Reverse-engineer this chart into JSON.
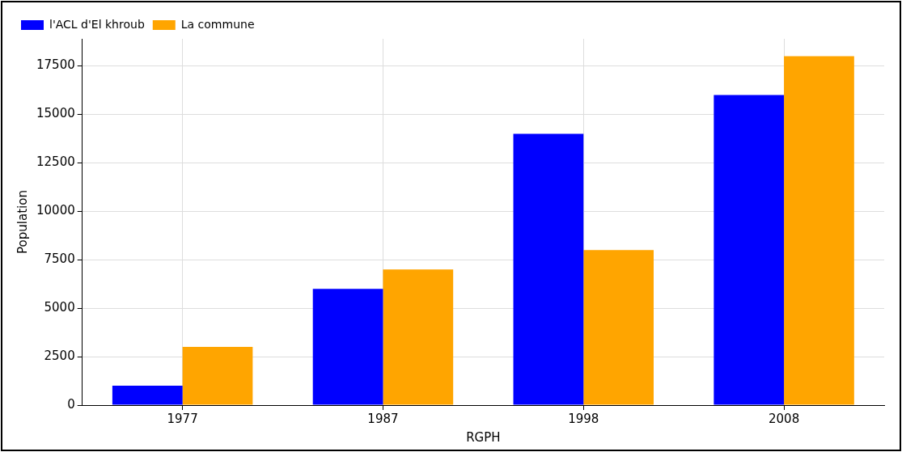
{
  "chart_data": {
    "type": "bar",
    "xlabel": "RGPH",
    "ylabel": "Population",
    "categories": [
      "1977",
      "1987",
      "1998",
      "2008"
    ],
    "series": [
      {
        "name": "l'ACL d'El khroub",
        "color": "#0000ff",
        "values": [
          1000,
          6000,
          14000,
          16000
        ]
      },
      {
        "name": "La commune",
        "color": "#ffa500",
        "values": [
          3000,
          7000,
          8000,
          18000
        ]
      }
    ],
    "ylim": [
      0,
      18900
    ],
    "yticks": [
      0,
      2500,
      5000,
      7500,
      10000,
      12500,
      15000,
      17500
    ],
    "grid": true,
    "legend": "top left"
  }
}
